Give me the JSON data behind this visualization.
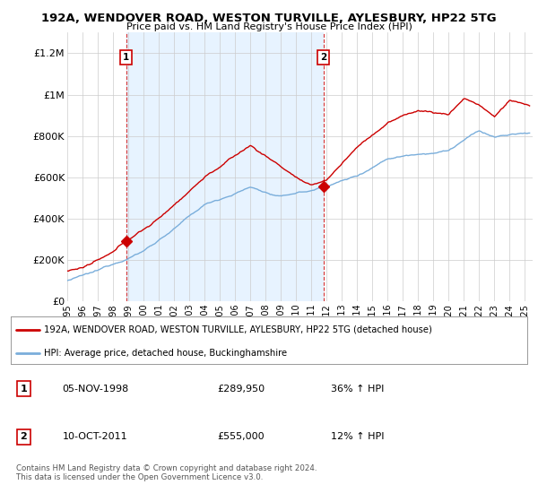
{
  "title": "192A, WENDOVER ROAD, WESTON TURVILLE, AYLESBURY, HP22 5TG",
  "subtitle": "Price paid vs. HM Land Registry's House Price Index (HPI)",
  "ylabel_ticks": [
    "£0",
    "£200K",
    "£400K",
    "£600K",
    "£800K",
    "£1M",
    "£1.2M"
  ],
  "ytick_values": [
    0,
    200000,
    400000,
    600000,
    800000,
    1000000,
    1200000
  ],
  "ylim": [
    0,
    1300000
  ],
  "xlim_start": 1995.0,
  "xlim_end": 2025.5,
  "sale1_x": 1998.85,
  "sale1_y": 289950,
  "sale1_label": "1",
  "sale2_x": 2011.78,
  "sale2_y": 555000,
  "sale2_label": "2",
  "red_line_color": "#cc0000",
  "blue_line_color": "#7aaedb",
  "shade_color": "#ddeeff",
  "background_color": "#ffffff",
  "grid_color": "#cccccc",
  "legend_red_color": "#cc0000",
  "legend_blue_color": "#7aaedb",
  "legend_entries": [
    "192A, WENDOVER ROAD, WESTON TURVILLE, AYLESBURY, HP22 5TG (detached house)",
    "HPI: Average price, detached house, Buckinghamshire"
  ],
  "table_rows": [
    {
      "num": "1",
      "date": "05-NOV-1998",
      "price": "£289,950",
      "change": "36% ↑ HPI"
    },
    {
      "num": "2",
      "date": "10-OCT-2011",
      "price": "£555,000",
      "change": "12% ↑ HPI"
    }
  ],
  "footer": "Contains HM Land Registry data © Crown copyright and database right 2024.\nThis data is licensed under the Open Government Licence v3.0.",
  "xticks": [
    1995,
    1996,
    1997,
    1998,
    1999,
    2000,
    2001,
    2002,
    2003,
    2004,
    2005,
    2006,
    2007,
    2008,
    2009,
    2010,
    2011,
    2012,
    2013,
    2014,
    2015,
    2016,
    2017,
    2018,
    2019,
    2020,
    2021,
    2022,
    2023,
    2024,
    2025
  ]
}
